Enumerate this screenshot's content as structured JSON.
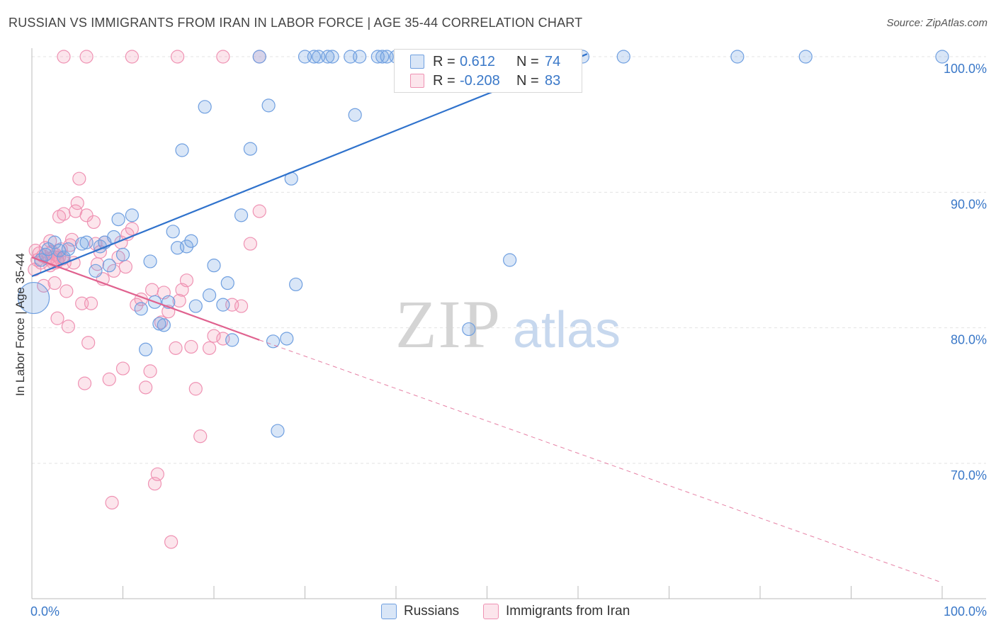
{
  "title": "RUSSIAN VS IMMIGRANTS FROM IRAN IN LABOR FORCE | AGE 35-44 CORRELATION CHART",
  "source": "Source: ZipAtlas.com",
  "watermark": {
    "zip": "ZIP",
    "atlas": "atlas"
  },
  "legend": {
    "rows": [
      {
        "r_label": "R =",
        "r_value": "0.612",
        "n_label": "N =",
        "n_value": "74",
        "color": "#6f9fe0"
      },
      {
        "r_label": "R =",
        "r_value": "-0.208",
        "n_label": "N =",
        "n_value": "83",
        "color": "#f29bb8"
      }
    ]
  },
  "bottom_legend": [
    {
      "label": "Russians",
      "color": "#6f9fe0"
    },
    {
      "label": "Immigrants from Iran",
      "color": "#f29bb8"
    }
  ],
  "colors": {
    "blue_fill": "rgba(120,165,225,0.28)",
    "blue_stroke": "#6f9fe0",
    "blue_line": "#2f72cc",
    "pink_fill": "rgba(242,150,180,0.25)",
    "pink_stroke": "#ef92b3",
    "pink_line": "#e0628f",
    "axis_label": "#3a78c8",
    "grid": "#e3e3e3"
  },
  "chart_data": {
    "type": "scatter",
    "title": "RUSSIAN VS IMMIGRANTS FROM IRAN IN LABOR FORCE | AGE 35-44 CORRELATION CHART",
    "xlabel": "",
    "ylabel": "In Labor Force | Age 35-44",
    "xlim": [
      0,
      100
    ],
    "ylim": [
      61.5,
      101
    ],
    "x_tick_labels": [
      {
        "value": 0,
        "label": "0.0%"
      },
      {
        "value": 100,
        "label": "100.0%"
      }
    ],
    "y_tick_labels": [
      {
        "value": 100,
        "label": "100.0%"
      },
      {
        "value": 90,
        "label": "90.0%"
      },
      {
        "value": 80,
        "label": "80.0%"
      },
      {
        "value": 70,
        "label": "70.0%"
      }
    ],
    "series": [
      {
        "name": "Russians",
        "trend": {
          "x": [
            0,
            61
          ],
          "y": [
            83.8,
            100.2
          ]
        },
        "points": [
          [
            0.2,
            82.2,
            3
          ],
          [
            1.0,
            85.0,
            1
          ],
          [
            1.5,
            85.4,
            1
          ],
          [
            1.8,
            85.8,
            1
          ],
          [
            2.5,
            86.3,
            1
          ],
          [
            3.0,
            85.7,
            1
          ],
          [
            3.5,
            85.2,
            1
          ],
          [
            4.0,
            85.8,
            1
          ],
          [
            5.5,
            86.2,
            1
          ],
          [
            6.0,
            86.3,
            1
          ],
          [
            7.0,
            84.2,
            1
          ],
          [
            7.5,
            86.0,
            1
          ],
          [
            8.0,
            86.3,
            1
          ],
          [
            8.5,
            84.6,
            1
          ],
          [
            9.0,
            86.7,
            1
          ],
          [
            9.5,
            88.0,
            1
          ],
          [
            10.0,
            85.4,
            1
          ],
          [
            11.0,
            88.3,
            1
          ],
          [
            12.0,
            81.4,
            1
          ],
          [
            12.5,
            78.4,
            1
          ],
          [
            13.0,
            84.9,
            1
          ],
          [
            13.5,
            81.9,
            1
          ],
          [
            14.0,
            80.3,
            1
          ],
          [
            14.5,
            80.2,
            1
          ],
          [
            15.0,
            81.9,
            1
          ],
          [
            15.5,
            87.1,
            1
          ],
          [
            16.0,
            85.9,
            1
          ],
          [
            16.5,
            93.1,
            1
          ],
          [
            17.0,
            86.0,
            1
          ],
          [
            17.5,
            86.4,
            1
          ],
          [
            18.0,
            81.6,
            1
          ],
          [
            19.0,
            96.3,
            1
          ],
          [
            19.5,
            82.4,
            1
          ],
          [
            20.0,
            84.6,
            1
          ],
          [
            21.0,
            81.7,
            1
          ],
          [
            21.5,
            83.3,
            1
          ],
          [
            22.0,
            79.1,
            1
          ],
          [
            23.0,
            88.3,
            1
          ],
          [
            24.0,
            93.2,
            1
          ],
          [
            25.0,
            100,
            1
          ],
          [
            26.0,
            96.4,
            1
          ],
          [
            26.5,
            79.0,
            1
          ],
          [
            27.0,
            72.4,
            1
          ],
          [
            28.0,
            79.2,
            1
          ],
          [
            28.5,
            91.0,
            1
          ],
          [
            29.0,
            83.2,
            1
          ],
          [
            30.0,
            100,
            1
          ],
          [
            31.0,
            100,
            1
          ],
          [
            31.5,
            100,
            1
          ],
          [
            32.5,
            100,
            1
          ],
          [
            33.0,
            100,
            1
          ],
          [
            35.0,
            100,
            1
          ],
          [
            35.5,
            95.7,
            1
          ],
          [
            36.0,
            100,
            1
          ],
          [
            38.0,
            100,
            1
          ],
          [
            38.5,
            100,
            1
          ],
          [
            39.0,
            100,
            1
          ],
          [
            40.0,
            100,
            1
          ],
          [
            41.0,
            100,
            1
          ],
          [
            41.5,
            100,
            1
          ],
          [
            43.0,
            100,
            1
          ],
          [
            44.0,
            100,
            1
          ],
          [
            45.0,
            100,
            1
          ],
          [
            46.0,
            100,
            1
          ],
          [
            48.0,
            79.9,
            1
          ],
          [
            50.0,
            100,
            1
          ],
          [
            52.5,
            85.0,
            1
          ],
          [
            53.0,
            100,
            1
          ],
          [
            55.5,
            100,
            1
          ],
          [
            60.5,
            100,
            1
          ],
          [
            65.0,
            100,
            1
          ],
          [
            77.5,
            100,
            1
          ],
          [
            85.0,
            100,
            1
          ],
          [
            100,
            100,
            1
          ]
        ]
      },
      {
        "name": "Immigrants from Iran",
        "trend": {
          "x": [
            0,
            25
          ],
          "y": [
            85.2,
            79.1
          ]
        },
        "trend_extended": {
          "x": [
            25,
            100
          ],
          "y": [
            79.1,
            61.2
          ]
        },
        "points": [
          [
            0.3,
            84.3,
            1
          ],
          [
            0.4,
            85.7,
            1
          ],
          [
            0.6,
            85.0,
            1
          ],
          [
            0.8,
            85.5,
            1
          ],
          [
            1.0,
            84.8,
            1
          ],
          [
            1.2,
            85.3,
            1
          ],
          [
            1.5,
            85.9,
            1
          ],
          [
            1.8,
            85.1,
            1
          ],
          [
            2.0,
            84.6,
            1
          ],
          [
            2.2,
            85.6,
            1
          ],
          [
            2.4,
            85.0,
            1
          ],
          [
            2.6,
            85.4,
            1
          ],
          [
            2.8,
            84.9,
            1
          ],
          [
            3.0,
            85.2,
            1
          ],
          [
            3.2,
            85.8,
            1
          ],
          [
            3.4,
            85.1,
            1
          ],
          [
            3.6,
            84.8,
            1
          ],
          [
            1.3,
            83.1,
            1
          ],
          [
            2.0,
            86.4,
            1
          ],
          [
            2.5,
            83.3,
            1
          ],
          [
            2.8,
            80.7,
            1
          ],
          [
            3.0,
            88.2,
            1
          ],
          [
            3.5,
            88.4,
            1
          ],
          [
            3.8,
            82.7,
            1
          ],
          [
            4.0,
            80.1,
            1
          ],
          [
            4.2,
            86.1,
            1
          ],
          [
            4.4,
            86.5,
            1
          ],
          [
            4.6,
            84.8,
            1
          ],
          [
            4.8,
            88.6,
            1
          ],
          [
            5.0,
            89.2,
            1
          ],
          [
            5.2,
            91.0,
            1
          ],
          [
            5.5,
            81.8,
            1
          ],
          [
            5.8,
            75.9,
            1
          ],
          [
            6.0,
            88.3,
            1
          ],
          [
            6.2,
            78.9,
            1
          ],
          [
            6.5,
            81.8,
            1
          ],
          [
            6.8,
            87.8,
            1
          ],
          [
            7.0,
            86.2,
            1
          ],
          [
            7.2,
            84.7,
            1
          ],
          [
            7.5,
            85.6,
            1
          ],
          [
            7.8,
            83.6,
            1
          ],
          [
            8.0,
            86.3,
            1
          ],
          [
            8.5,
            76.2,
            1
          ],
          [
            8.8,
            67.1,
            1
          ],
          [
            9.0,
            84.2,
            1
          ],
          [
            9.5,
            85.2,
            1
          ],
          [
            9.8,
            86.3,
            1
          ],
          [
            10.0,
            77.0,
            1
          ],
          [
            10.3,
            84.5,
            1
          ],
          [
            10.5,
            86.9,
            1
          ],
          [
            11.0,
            87.3,
            1
          ],
          [
            11.5,
            81.7,
            1
          ],
          [
            12.0,
            82.1,
            1
          ],
          [
            12.5,
            75.6,
            1
          ],
          [
            13.0,
            76.8,
            1
          ],
          [
            13.2,
            82.8,
            1
          ],
          [
            13.5,
            68.5,
            1
          ],
          [
            13.8,
            69.2,
            1
          ],
          [
            14.2,
            80.4,
            1
          ],
          [
            14.5,
            82.6,
            1
          ],
          [
            15.0,
            81.2,
            1
          ],
          [
            15.3,
            64.2,
            1
          ],
          [
            15.8,
            78.5,
            1
          ],
          [
            16.2,
            82.0,
            1
          ],
          [
            16.5,
            82.8,
            1
          ],
          [
            17.0,
            83.5,
            1
          ],
          [
            17.5,
            78.6,
            1
          ],
          [
            18.0,
            75.5,
            1
          ],
          [
            18.5,
            72.0,
            1
          ],
          [
            19.5,
            78.5,
            1
          ],
          [
            20.0,
            79.4,
            1
          ],
          [
            21.0,
            79.2,
            1
          ],
          [
            22.0,
            81.7,
            1
          ],
          [
            23.0,
            81.6,
            1
          ],
          [
            24.0,
            86.2,
            1
          ],
          [
            25.0,
            88.6,
            1
          ],
          [
            3.5,
            100,
            1
          ],
          [
            6.0,
            100,
            1
          ],
          [
            11.0,
            100,
            1
          ],
          [
            16.0,
            100,
            1
          ],
          [
            21.0,
            100,
            1
          ],
          [
            25.0,
            100,
            1
          ],
          [
            2.5,
            85.0,
            2
          ]
        ]
      }
    ]
  }
}
